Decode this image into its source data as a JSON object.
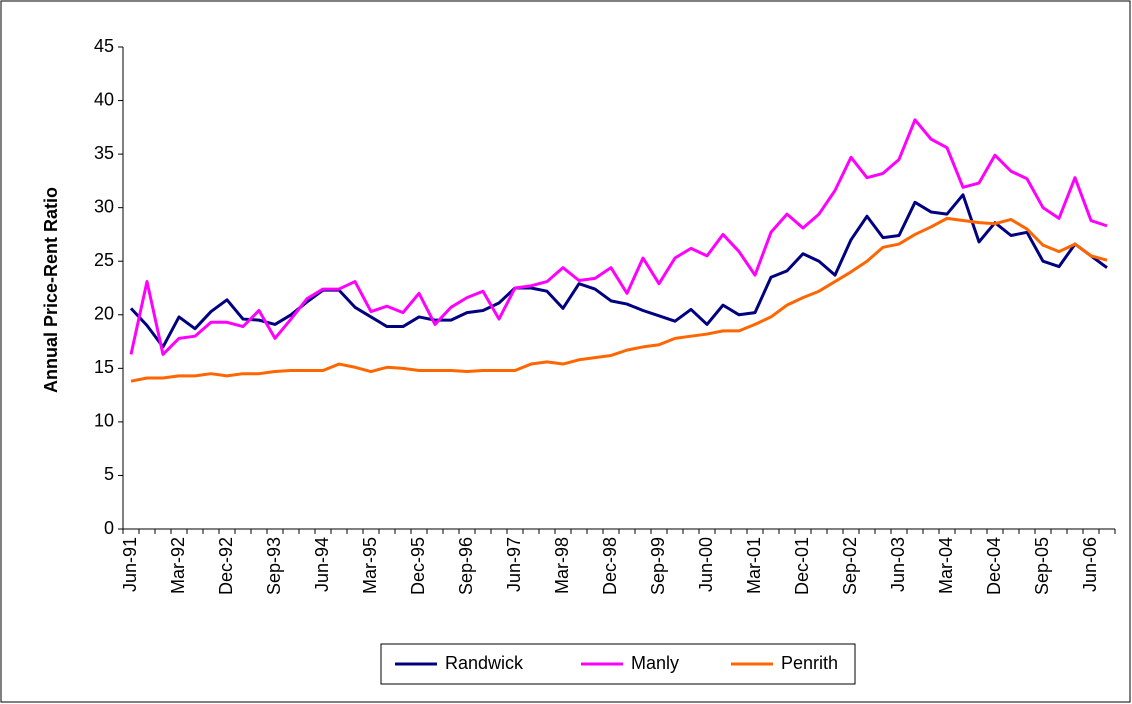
{
  "chart_data": {
    "type": "line",
    "y_label": "Annual Price-Rent Ratio",
    "categories": [
      "Jun-91",
      null,
      null,
      "Mar-92",
      null,
      null,
      "Dec-92",
      null,
      null,
      "Sep-93",
      null,
      null,
      "Jun-94",
      null,
      null,
      "Mar-95",
      null,
      null,
      "Dec-95",
      null,
      null,
      "Sep-96",
      null,
      null,
      "Jun-97",
      null,
      null,
      "Mar-98",
      null,
      null,
      "Dec-98",
      null,
      null,
      "Sep-99",
      null,
      null,
      "Jun-00",
      null,
      null,
      "Mar-01",
      null,
      null,
      "Dec-01",
      null,
      null,
      "Sep-02",
      null,
      null,
      "Jun-03",
      null,
      null,
      "Mar-04",
      null,
      null,
      "Dec-04",
      null,
      null,
      "Sep-05",
      null,
      null,
      "Jun-06",
      null
    ],
    "series": [
      {
        "name": "Randwick",
        "color": "#000080",
        "values": [
          20.6,
          19,
          17,
          19.8,
          18.7,
          20.3,
          21.4,
          19.6,
          19.5,
          19.1,
          20,
          21.2,
          22.3,
          22.3,
          20.7,
          19.8,
          18.9,
          18.9,
          19.8,
          19.5,
          19.5,
          20.2,
          20.4,
          21.1,
          22.5,
          22.5,
          22.2,
          20.6,
          22.9,
          22.4,
          21.3,
          21,
          20.4,
          19.9,
          19.4,
          20.5,
          19.1,
          20.9,
          20,
          20.2,
          23.5,
          24.1,
          25.7,
          25,
          23.7,
          27,
          29.2,
          27.2,
          27.4,
          30.5,
          29.6,
          29.4,
          31.2,
          26.8,
          28.6,
          27.4,
          27.7,
          25,
          24.5,
          26.6,
          25.5,
          24.4
        ]
      },
      {
        "name": "Manly",
        "color": "#ff00ff",
        "values": [
          16.3,
          23.1,
          16.3,
          17.8,
          18,
          19.3,
          19.3,
          18.9,
          20.4,
          17.8,
          19.6,
          21.5,
          22.4,
          22.4,
          23.1,
          20.3,
          20.8,
          20.2,
          22,
          19.1,
          20.7,
          21.6,
          22.2,
          19.6,
          22.5,
          22.7,
          23.1,
          24.4,
          23.2,
          23.4,
          24.4,
          22,
          25.3,
          22.9,
          25.3,
          26.2,
          25.5,
          27.5,
          25.9,
          23.7,
          27.7,
          29.4,
          28.1,
          29.4,
          31.6,
          34.7,
          32.8,
          33.2,
          34.5,
          38.2,
          36.4,
          35.6,
          31.9,
          32.3,
          34.9,
          33.4,
          32.7,
          30,
          29,
          32.8,
          28.8,
          28.3
        ]
      },
      {
        "name": "Penrith",
        "color": "#ff6600",
        "values": [
          13.8,
          14.1,
          14.1,
          14.3,
          14.3,
          14.5,
          14.3,
          14.5,
          14.5,
          14.7,
          14.8,
          14.8,
          14.8,
          15.4,
          15.1,
          14.7,
          15.1,
          15,
          14.8,
          14.8,
          14.8,
          14.7,
          14.8,
          14.8,
          14.8,
          15.4,
          15.6,
          15.4,
          15.8,
          16,
          16.2,
          16.7,
          17,
          17.2,
          17.8,
          18,
          18.2,
          18.5,
          18.5,
          19.1,
          19.8,
          20.9,
          21.6,
          22.2,
          23.1,
          24,
          25,
          26.3,
          26.6,
          27.5,
          28.2,
          29,
          28.8,
          28.6,
          28.5,
          28.9,
          28,
          26.5,
          25.9,
          26.6,
          25.5,
          25.1
        ]
      }
    ],
    "ylim": [
      0,
      45
    ],
    "yticks": [
      0,
      5,
      10,
      15,
      20,
      25,
      30,
      35,
      40,
      45
    ],
    "grid": false,
    "legend": "bottom"
  }
}
